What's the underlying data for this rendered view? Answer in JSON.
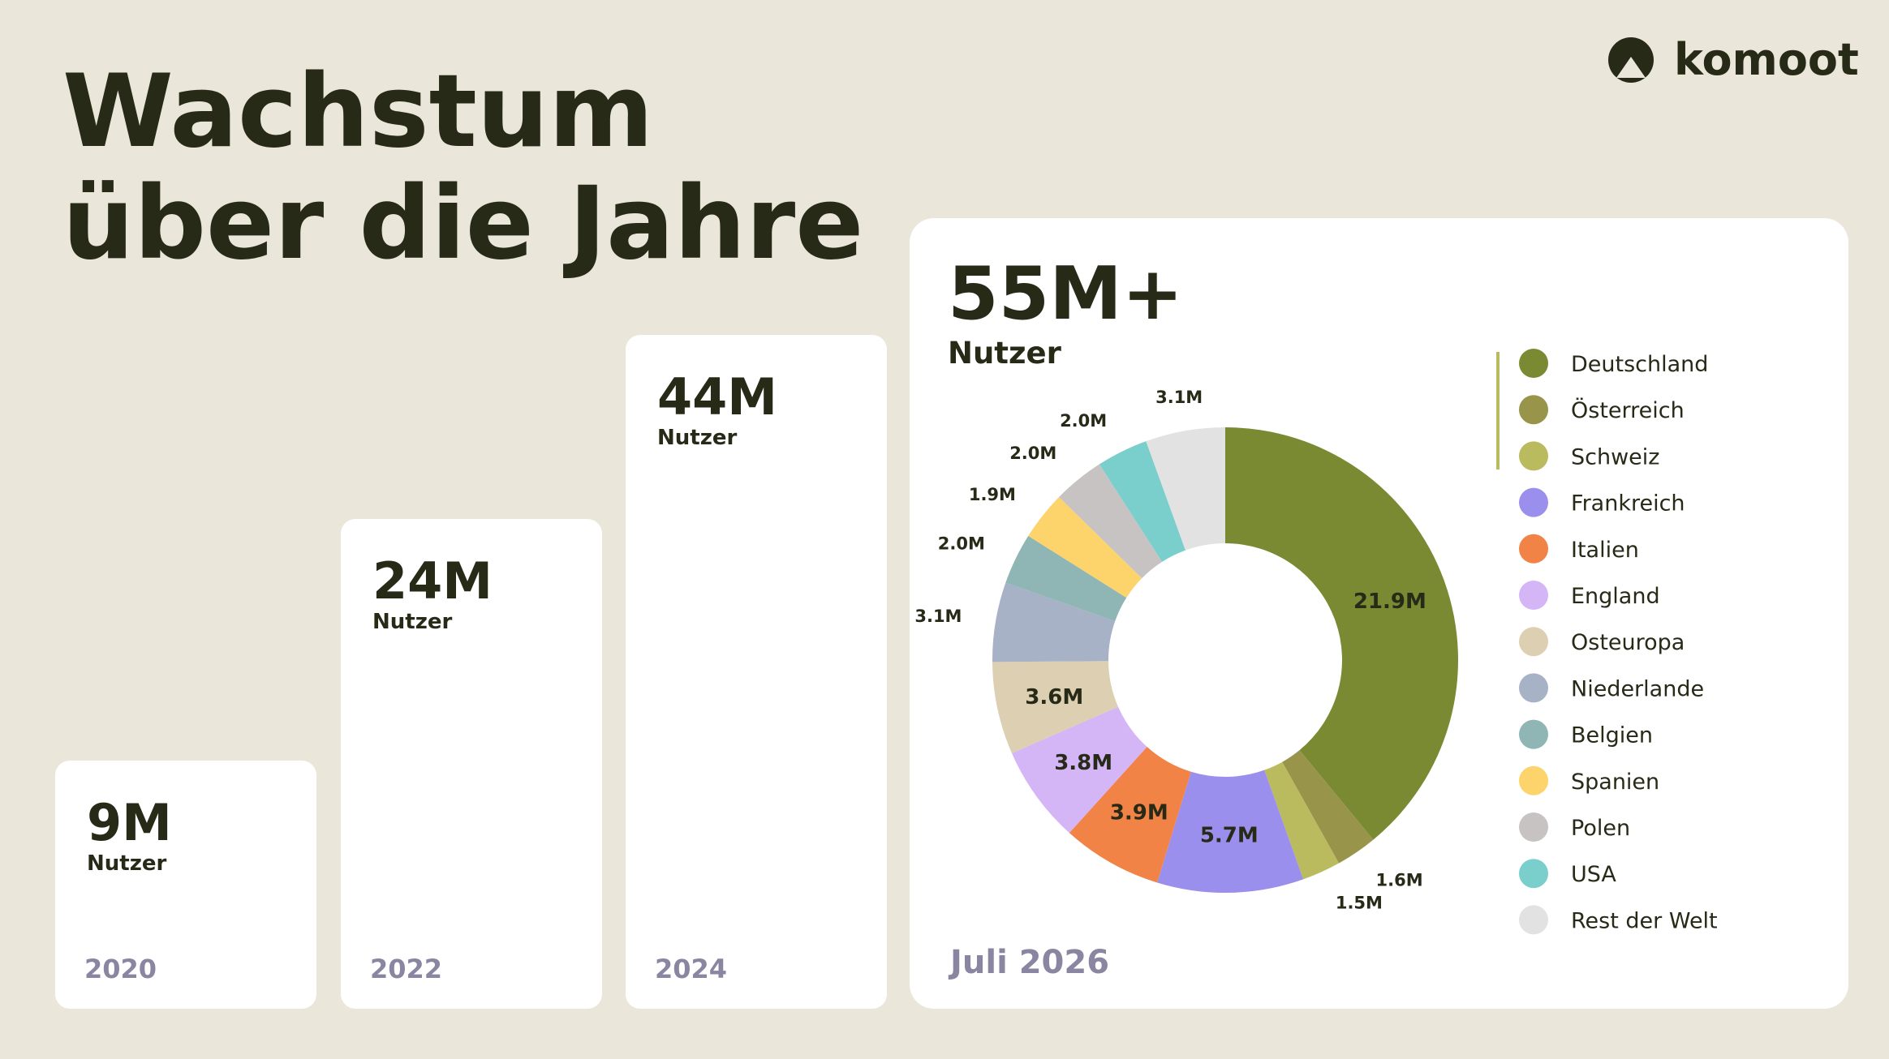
{
  "header": {
    "title_lines": [
      "Wachstum",
      "über die Jahre"
    ],
    "logo": "komoot"
  },
  "cards": [
    {
      "value": "9M",
      "unit": "Nutzer",
      "year": "2020"
    },
    {
      "value": "24M",
      "unit": "Nutzer",
      "year": "2022"
    },
    {
      "value": "44M",
      "unit": "Nutzer",
      "year": "2024"
    }
  ],
  "chart_data": {
    "type": "donut",
    "total": "55M+",
    "total_unit": "Nutzer",
    "date": "Juli 2026",
    "categories": [
      "Deutschland",
      "Österreich",
      "Schweiz",
      "Frankreich",
      "Italien",
      "England",
      "Osteuropa",
      "Niederlande",
      "Belgien",
      "Spanien",
      "Polen",
      "USA",
      "Rest der Welt"
    ],
    "values": [
      21.9,
      1.6,
      1.5,
      5.7,
      3.9,
      3.8,
      3.6,
      3.1,
      2.0,
      1.9,
      2.0,
      2.0,
      3.1
    ],
    "value_labels": [
      "21.9M",
      "1.6M",
      "1.5M",
      "5.7M",
      "3.9M",
      "3.8M",
      "3.6M",
      "3.1M",
      "2.0M",
      "1.9M",
      "2.0M",
      "2.0M",
      "3.1M"
    ],
    "colors": [
      "#7a8a33",
      "#98944a",
      "#b9bb5e",
      "#9b8fee",
      "#f28346",
      "#d4b6f7",
      "#ddcfb1",
      "#a7b2c7",
      "#8fb5b4",
      "#fdd46c",
      "#c7c3c3",
      "#7acfcc",
      "#e2e2e2"
    ],
    "legend": "right"
  }
}
